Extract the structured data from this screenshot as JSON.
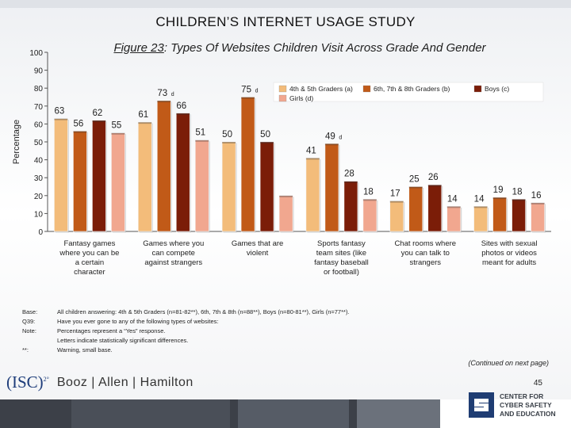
{
  "page": {
    "title": "CHILDREN’S INTERNET USAGE STUDY",
    "figure_label": "Figure 23",
    "figure_title": ": Types Of Websites Children Visit Across Grade And Gender",
    "page_number": "45",
    "continued": "(Continued on next page)"
  },
  "notes": [
    {
      "key": "Base:",
      "text": "All children answering: 4th & 5th Graders (n=81-82**), 6th, 7th & 8th (n=88**), Boys (n=80-81**), Girls (n=77**)."
    },
    {
      "key": "Q39:",
      "text": "Have you ever gone to any of the following types of websites:"
    },
    {
      "key": "Note:",
      "text": "Percentages represent a “Yes” response."
    },
    {
      "key": "",
      "text": "Letters indicate statistically significant differences."
    },
    {
      "key": "**:",
      "text": "Warning, small base."
    }
  ],
  "logos": {
    "isc": "(ISC)",
    "isc_sup": "2°",
    "booz": "Booz | Allen | Hamilton",
    "center_line1": "CENTER FOR",
    "center_line2": "CYBER SAFETY",
    "center_line3": "AND EDUCATION"
  },
  "colors": {
    "grade45": "#f3bc7a",
    "grade678": "#c15a18",
    "boys": "#7b1d08",
    "girls": "#f1a78f"
  },
  "chart_data": {
    "type": "bar",
    "ylabel": "Percentage",
    "ylim": [
      0,
      100
    ],
    "yticks": [
      0,
      10,
      20,
      30,
      40,
      50,
      60,
      70,
      80,
      90,
      100
    ],
    "categories": [
      "Fantasy games where you can be a certain character",
      "Games where you can compete against strangers",
      "Games that are violent",
      "Sports fantasy team sites (like fantasy baseball or football)",
      "Chat rooms where you can talk to strangers",
      "Sites with sexual photos or videos meant for adults"
    ],
    "series": [
      {
        "name": "4th & 5th Graders (a)",
        "values": [
          63,
          61,
          50,
          41,
          17,
          14
        ],
        "labels": [
          "63",
          "61",
          "50",
          "41",
          "17",
          "14"
        ]
      },
      {
        "name": "6th, 7th & 8th Graders (b)",
        "values": [
          56,
          73,
          75,
          49,
          25,
          19
        ],
        "labels": [
          "56",
          "73",
          "75",
          "49",
          "25",
          "19"
        ]
      },
      {
        "name": "Boys (c)",
        "values": [
          62,
          66,
          50,
          28,
          26,
          18
        ],
        "labels": [
          "62",
          "66",
          "50",
          "28",
          "26",
          "18"
        ]
      },
      {
        "name": "Girls (d)",
        "values": [
          55,
          51,
          20,
          18,
          14,
          16
        ],
        "labels": [
          "55",
          "51",
          "",
          "18",
          "14",
          "16"
        ]
      }
    ],
    "sig_letters": [
      [
        "",
        "",
        "",
        ""
      ],
      [
        "",
        "d",
        "",
        ""
      ],
      [
        "",
        "d",
        "",
        ""
      ],
      [
        "",
        "d",
        "",
        ""
      ],
      [
        "",
        "",
        "",
        ""
      ],
      [
        "",
        "",
        "",
        ""
      ]
    ],
    "legend": {
      "position": "top-right",
      "items": [
        "4th & 5th Graders (a)",
        "6th, 7th & 8th Graders (b)",
        "Boys (c)",
        "Girls (d)"
      ]
    }
  }
}
